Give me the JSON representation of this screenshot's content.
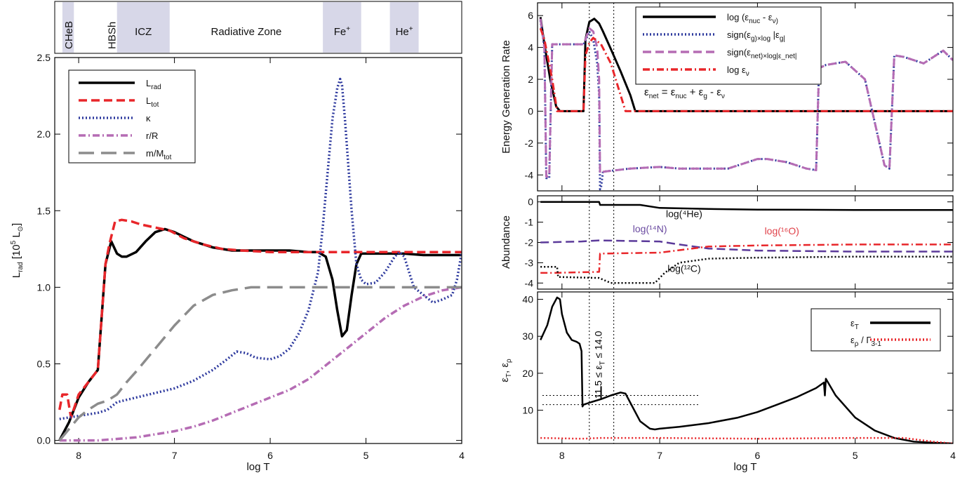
{
  "chart_data": [
    {
      "id": "left",
      "type": "line",
      "xlabel": "log T",
      "ylabel": "L_rad [10^5 L_⊙]",
      "xlim": [
        8.25,
        4.0
      ],
      "ylim": [
        -0.02,
        2.5
      ],
      "x_ticks": [
        "8",
        "7",
        "6",
        "5",
        "4"
      ],
      "y_ticks": [
        "0.0",
        "0.5",
        "1.0",
        "1.5",
        "2.0",
        "2.5"
      ],
      "legend_position": "top-left",
      "zones": [
        {
          "label": "CHeB",
          "x": [
            8.17,
            8.05
          ],
          "shaded": true
        },
        {
          "label": "HBSh",
          "x": [
            7.72,
            7.6
          ],
          "shaded": false
        },
        {
          "label": "ICZ",
          "x": [
            7.6,
            7.05
          ],
          "shaded": true
        },
        {
          "label": "Radiative Zone",
          "x": [
            7.05,
            5.45
          ],
          "shaded": false
        },
        {
          "label": "Fe+",
          "x": [
            5.45,
            5.05
          ],
          "shaded": true
        },
        {
          "label": "He+",
          "x": [
            4.75,
            4.45
          ],
          "shaded": true
        }
      ],
      "series": [
        {
          "name": "L_rad",
          "color": "#000000",
          "dash": "solid",
          "x": [
            8.2,
            8.1,
            8.0,
            7.9,
            7.8,
            7.72,
            7.66,
            7.6,
            7.55,
            7.5,
            7.4,
            7.3,
            7.2,
            7.1,
            7.0,
            6.9,
            6.8,
            6.6,
            6.4,
            6.2,
            6.0,
            5.8,
            5.6,
            5.5,
            5.42,
            5.35,
            5.3,
            5.25,
            5.2,
            5.15,
            5.1,
            5.05,
            5.0,
            4.8,
            4.6,
            4.4,
            4.2,
            4.0
          ],
          "y": [
            0.0,
            0.12,
            0.28,
            0.38,
            0.46,
            1.15,
            1.3,
            1.22,
            1.2,
            1.2,
            1.23,
            1.3,
            1.36,
            1.38,
            1.36,
            1.33,
            1.3,
            1.26,
            1.24,
            1.24,
            1.24,
            1.24,
            1.23,
            1.23,
            1.2,
            1.05,
            0.85,
            0.68,
            0.72,
            0.95,
            1.15,
            1.22,
            1.22,
            1.22,
            1.22,
            1.21,
            1.21,
            1.21
          ]
        },
        {
          "name": "L_tot",
          "color": "#e8262a",
          "dash": "dashed",
          "x": [
            8.2,
            8.17,
            8.12,
            8.08,
            8.0,
            7.9,
            7.8,
            7.72,
            7.68,
            7.62,
            7.55,
            7.45,
            7.35,
            7.2,
            7.05,
            6.9,
            6.7,
            6.5,
            6.3,
            6.0,
            5.5,
            5.0,
            4.5,
            4.0
          ],
          "y": [
            0.2,
            0.3,
            0.3,
            0.15,
            0.3,
            0.38,
            0.46,
            1.15,
            1.28,
            1.43,
            1.44,
            1.43,
            1.41,
            1.39,
            1.37,
            1.32,
            1.28,
            1.25,
            1.24,
            1.23,
            1.23,
            1.23,
            1.23,
            1.23
          ]
        },
        {
          "name": "κ",
          "color": "#2e3a9e",
          "dash": "dotted",
          "x": [
            8.2,
            8.0,
            7.8,
            7.7,
            7.6,
            7.4,
            7.2,
            7.0,
            6.8,
            6.6,
            6.45,
            6.35,
            6.25,
            6.15,
            6.0,
            5.9,
            5.8,
            5.7,
            5.6,
            5.5,
            5.45,
            5.4,
            5.35,
            5.3,
            5.27,
            5.25,
            5.22,
            5.15,
            5.1,
            5.05,
            5.0,
            4.9,
            4.8,
            4.7,
            4.65,
            4.6,
            4.55,
            4.5,
            4.4,
            4.3,
            4.2,
            4.1,
            4.05,
            4.0
          ],
          "y": [
            0.14,
            0.16,
            0.18,
            0.2,
            0.25,
            0.28,
            0.31,
            0.34,
            0.39,
            0.46,
            0.53,
            0.58,
            0.57,
            0.54,
            0.53,
            0.55,
            0.6,
            0.7,
            0.85,
            1.1,
            1.4,
            1.75,
            2.1,
            2.3,
            2.36,
            2.32,
            2.1,
            1.5,
            1.15,
            1.05,
            1.02,
            1.03,
            1.1,
            1.2,
            1.23,
            1.2,
            1.1,
            1.0,
            0.95,
            0.9,
            0.92,
            0.95,
            1.05,
            1.23
          ]
        },
        {
          "name": "r/R",
          "color": "#b56cb4",
          "dash": "dashdot",
          "x": [
            8.2,
            8.0,
            7.8,
            7.6,
            7.4,
            7.2,
            7.0,
            6.8,
            6.6,
            6.4,
            6.2,
            6.0,
            5.8,
            5.6,
            5.4,
            5.2,
            5.0,
            4.8,
            4.6,
            4.4,
            4.2,
            4.0
          ],
          "y": [
            0.0,
            0.0,
            0.0,
            0.01,
            0.02,
            0.04,
            0.06,
            0.09,
            0.13,
            0.18,
            0.23,
            0.28,
            0.33,
            0.4,
            0.5,
            0.6,
            0.7,
            0.8,
            0.88,
            0.94,
            0.98,
            1.0
          ]
        },
        {
          "name": "m/M_tot",
          "color": "#8c8c8c",
          "dash": "longdash",
          "x": [
            8.2,
            8.0,
            7.9,
            7.8,
            7.7,
            7.6,
            7.5,
            7.4,
            7.2,
            7.0,
            6.8,
            6.6,
            6.4,
            6.2,
            6.0,
            5.5,
            5.0,
            4.5,
            4.0
          ],
          "y": [
            0.0,
            0.15,
            0.2,
            0.24,
            0.26,
            0.3,
            0.38,
            0.45,
            0.6,
            0.75,
            0.88,
            0.95,
            0.98,
            1.0,
            1.0,
            1.0,
            1.0,
            1.0,
            1.0
          ]
        }
      ]
    },
    {
      "id": "right_top",
      "type": "line",
      "xlabel": "",
      "ylabel": "Energy Generation Rate",
      "xlim": [
        8.25,
        4.0
      ],
      "ylim": [
        -5,
        6.8
      ],
      "x_ticks": [],
      "y_ticks": [
        "6",
        "4",
        "2",
        "0",
        "-2",
        "-4"
      ],
      "y_tick_values": [
        6,
        4,
        2,
        0,
        -2,
        -4
      ],
      "vlines": [
        7.72,
        7.47
      ],
      "legend_position": "top-center",
      "annotation": "ε_net = ε_nuc + ε_g - ε_ν",
      "series": [
        {
          "name": "log (ε_nuc - ε_ν)",
          "color": "#000000",
          "dash": "solid",
          "x": [
            8.22,
            8.18,
            8.12,
            8.06,
            8.02,
            7.9,
            7.78,
            7.76,
            7.72,
            7.67,
            7.62,
            7.58,
            7.5,
            7.4,
            7.3,
            7.25,
            7.0,
            6.0,
            5.0,
            4.0
          ],
          "y": [
            5.9,
            4.2,
            2.0,
            0.3,
            0.0,
            0.0,
            0.0,
            4.5,
            5.6,
            5.8,
            5.5,
            5.0,
            3.9,
            2.5,
            1.0,
            0.0,
            0.0,
            0.0,
            0.0,
            0.0
          ]
        },
        {
          "name": "sign(ε_g)×log |ε_g|",
          "color": "#2e3a9e",
          "dash": "dotted",
          "x": [
            8.22,
            8.18,
            8.16,
            8.13,
            8.1,
            8.0,
            7.9,
            7.78,
            7.76,
            7.72,
            7.68,
            7.64,
            7.62,
            7.61,
            7.6,
            7.58,
            7.3,
            7.0,
            6.8,
            6.5,
            6.3,
            6.0,
            5.9,
            5.7,
            5.5,
            5.4,
            5.37,
            5.3,
            5.1,
            4.9,
            4.7,
            4.65,
            4.6,
            4.5,
            4.3,
            4.1,
            4.0
          ],
          "y": [
            5.7,
            4.0,
            -4.2,
            -4.2,
            4.2,
            4.2,
            4.2,
            4.2,
            4.4,
            5.0,
            4.5,
            3.0,
            1.0,
            -4.9,
            -4.8,
            -3.8,
            -3.6,
            -3.5,
            -3.6,
            -3.6,
            -3.6,
            -3.0,
            -3.0,
            -3.2,
            -3.6,
            -3.7,
            2.7,
            2.9,
            3.1,
            2.0,
            -3.4,
            -3.6,
            3.5,
            3.4,
            3.0,
            3.8,
            3.2
          ]
        },
        {
          "name": "sign(ε_net)×log|ε_net|",
          "color": "#b56cb4",
          "dash": "dashed",
          "x": [
            8.22,
            8.18,
            8.16,
            8.13,
            8.1,
            8.0,
            7.9,
            7.78,
            7.76,
            7.72,
            7.68,
            7.64,
            7.62,
            7.61,
            7.6,
            7.58,
            7.3,
            7.0,
            6.8,
            6.5,
            6.3,
            6.0,
            5.9,
            5.7,
            5.5,
            5.4,
            5.37,
            5.3,
            5.1,
            4.9,
            4.7,
            4.65,
            4.6,
            4.5,
            4.3,
            4.1,
            4.0
          ],
          "y": [
            5.8,
            4.0,
            -4.1,
            -4.1,
            4.2,
            4.2,
            4.2,
            4.2,
            4.5,
            5.2,
            5.0,
            4.0,
            2.0,
            -3.9,
            -3.8,
            -3.8,
            -3.6,
            -3.5,
            -3.6,
            -3.6,
            -3.6,
            -3.0,
            -3.0,
            -3.2,
            -3.6,
            -3.7,
            2.7,
            2.9,
            3.1,
            2.0,
            -3.4,
            -3.6,
            3.5,
            3.4,
            3.0,
            3.8,
            3.2
          ]
        },
        {
          "name": "log ε_ν",
          "color": "#e8262a",
          "dash": "dashdot",
          "x": [
            8.22,
            8.18,
            8.1,
            8.05,
            8.0,
            7.9,
            7.78,
            7.76,
            7.72,
            7.68,
            7.6,
            7.5,
            7.4,
            7.35,
            7.0,
            6.0,
            5.0,
            4.0
          ],
          "y": [
            5.2,
            4.5,
            2.0,
            0.0,
            0.0,
            0.0,
            0.0,
            3.5,
            4.3,
            4.6,
            4.2,
            3.0,
            1.0,
            0.0,
            0.0,
            0.0,
            0.0,
            0.0
          ]
        }
      ]
    },
    {
      "id": "right_middle",
      "type": "line",
      "xlabel": "",
      "ylabel": "Abundance",
      "xlim": [
        8.25,
        4.0
      ],
      "ylim": [
        -4.3,
        0.3
      ],
      "y_ticks": [
        "0",
        "-1",
        "-2",
        "-3",
        "-4"
      ],
      "y_tick_values": [
        0,
        -1,
        -2,
        -3,
        -4
      ],
      "vlines": [
        7.72,
        7.47
      ],
      "labels": [
        {
          "text": "log(⁴He)",
          "x": 6.75,
          "y": -0.75,
          "color": "#111111"
        },
        {
          "text": "log(¹⁴N)",
          "x": 7.1,
          "y": -1.5,
          "color": "#6a4aa0"
        },
        {
          "text": "log(¹⁶O)",
          "x": 5.75,
          "y": -1.6,
          "color": "#e0424a"
        },
        {
          "text": "log(¹²C)",
          "x": 6.75,
          "y": -3.45,
          "color": "#111111"
        }
      ],
      "series": [
        {
          "name": "log(⁴He)",
          "color": "#000000",
          "dash": "solid",
          "x": [
            8.22,
            7.62,
            7.61,
            7.2,
            7.0,
            6.5,
            6.0,
            5.0,
            4.0
          ],
          "y": [
            0.0,
            0.0,
            -0.15,
            -0.15,
            -0.3,
            -0.35,
            -0.38,
            -0.4,
            -0.4
          ]
        },
        {
          "name": "log(¹⁴N)",
          "color": "#5b3a9a",
          "dash": "dashed",
          "x": [
            8.22,
            7.8,
            7.62,
            7.0,
            6.8,
            6.5,
            6.0,
            5.0,
            4.0
          ],
          "y": [
            -2.0,
            -1.95,
            -1.9,
            -1.95,
            -2.1,
            -2.3,
            -2.4,
            -2.45,
            -2.45
          ]
        },
        {
          "name": "log(¹⁶O)",
          "color": "#e8262a",
          "dash": "dashdot",
          "x": [
            8.22,
            8.1,
            7.62,
            7.61,
            7.0,
            6.5,
            6.0,
            5.0,
            4.0
          ],
          "y": [
            -3.5,
            -3.5,
            -3.45,
            -2.55,
            -2.5,
            -2.2,
            -2.15,
            -2.1,
            -2.1
          ]
        },
        {
          "name": "log(¹²C)",
          "color": "#000000",
          "dash": "dotted",
          "x": [
            8.22,
            8.05,
            8.04,
            7.62,
            7.5,
            7.05,
            6.95,
            6.8,
            6.5,
            6.0,
            5.0,
            4.0
          ],
          "y": [
            -3.2,
            -3.2,
            -3.7,
            -3.75,
            -4.0,
            -4.0,
            -3.5,
            -3.0,
            -2.8,
            -2.75,
            -2.7,
            -2.7
          ]
        }
      ]
    },
    {
      "id": "right_bottom",
      "type": "line",
      "xlabel": "log T",
      "ylabel": "ε_T, ε_ρ",
      "xlim": [
        8.25,
        4.0
      ],
      "ylim": [
        1,
        42
      ],
      "x_ticks": [
        "8",
        "7",
        "6",
        "5",
        "4"
      ],
      "y_ticks": [
        "40",
        "30",
        "20",
        "10"
      ],
      "y_tick_values": [
        40,
        30,
        20,
        10
      ],
      "vlines": [
        7.72,
        7.47
      ],
      "hlines": [
        11.5,
        14.0
      ],
      "hline_xrange": [
        8.2,
        6.6
      ],
      "range_annotation": "11.5 ≤ ε_T ≤ 14.0",
      "legend_position": "top-right",
      "series": [
        {
          "name": "ε_T",
          "color": "#000000",
          "dash": "solid",
          "x": [
            8.22,
            8.15,
            8.1,
            8.05,
            8.02,
            8.0,
            7.95,
            7.9,
            7.85,
            7.82,
            7.8,
            7.79,
            7.78,
            7.7,
            7.6,
            7.5,
            7.4,
            7.35,
            7.3,
            7.2,
            7.1,
            7.05,
            7.0,
            6.8,
            6.5,
            6.2,
            6.0,
            5.8,
            5.6,
            5.4,
            5.32,
            5.31,
            5.3,
            5.2,
            5.0,
            4.8,
            4.6,
            4.4,
            4.2,
            4.0
          ],
          "y": [
            29,
            33,
            38,
            40.5,
            40,
            36,
            31,
            29,
            28.5,
            28,
            26,
            11,
            11.5,
            12.2,
            13,
            14,
            14.8,
            14.5,
            12,
            7,
            5,
            4.8,
            5,
            5.5,
            6.5,
            8,
            9.5,
            11.5,
            13.5,
            16,
            17.5,
            14,
            18.5,
            14,
            8,
            4.5,
            2.5,
            1.5,
            1.2,
            1.0
          ]
        },
        {
          "name": "ε_ρ / Γ_3-1",
          "color": "#e8262a",
          "dash": "dotted",
          "x": [
            8.22,
            7.8,
            7.6,
            7.0,
            6.0,
            5.0,
            4.5,
            4.2,
            4.0
          ],
          "y": [
            2.5,
            2.3,
            2.5,
            2.5,
            2.3,
            2.5,
            2.5,
            1.5,
            1.0
          ]
        }
      ]
    }
  ]
}
